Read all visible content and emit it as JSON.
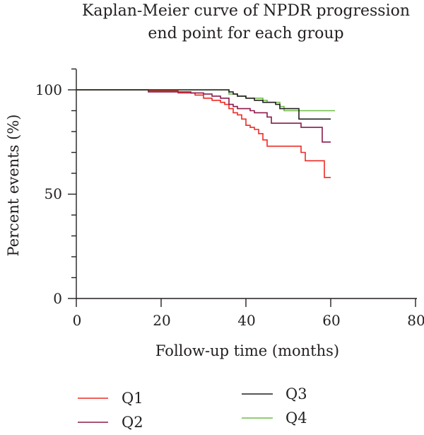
{
  "chart_data": {
    "type": "line",
    "title_line1": "Kaplan-Meier curve of NPDR progression",
    "title_line2": "end point for each group",
    "xlabel": "Follow-up time (months)",
    "ylabel": "Percent events (%)",
    "xlim": [
      0,
      80
    ],
    "ylim": [
      0,
      110
    ],
    "x_ticks": [
      "0",
      "20",
      "40",
      "60",
      "80"
    ],
    "y_ticks": [
      "0",
      "50",
      "100"
    ],
    "grid": false,
    "legend_position": "bottom",
    "series": [
      {
        "name": "Q1",
        "color": "#ee2a24",
        "points": [
          [
            0,
            100
          ],
          [
            17,
            99.5
          ],
          [
            24,
            98.5
          ],
          [
            28,
            97.5
          ],
          [
            30,
            96
          ],
          [
            32,
            95
          ],
          [
            34,
            94
          ],
          [
            35,
            93
          ],
          [
            36,
            91
          ],
          [
            37,
            89
          ],
          [
            38,
            88
          ],
          [
            39,
            86
          ],
          [
            40,
            83
          ],
          [
            41,
            82
          ],
          [
            42,
            81
          ],
          [
            43,
            79
          ],
          [
            44,
            76
          ],
          [
            45,
            73
          ],
          [
            52,
            73
          ],
          [
            53,
            70
          ],
          [
            54,
            66
          ],
          [
            58,
            66
          ],
          [
            58.5,
            58
          ],
          [
            60,
            58
          ]
        ]
      },
      {
        "name": "Q2",
        "color": "#8b1a4a",
        "points": [
          [
            0,
            100
          ],
          [
            17,
            99
          ],
          [
            27,
            98.5
          ],
          [
            30,
            98
          ],
          [
            32,
            97
          ],
          [
            34,
            96
          ],
          [
            36,
            93
          ],
          [
            37,
            92
          ],
          [
            38,
            91
          ],
          [
            40,
            91
          ],
          [
            41,
            90
          ],
          [
            42,
            89
          ],
          [
            44,
            89
          ],
          [
            45,
            87
          ],
          [
            46,
            84
          ],
          [
            52,
            84
          ],
          [
            53,
            82
          ],
          [
            57,
            82
          ],
          [
            58,
            75
          ],
          [
            60,
            75
          ]
        ]
      },
      {
        "name": "Q3",
        "color": "#231f20",
        "points": [
          [
            0,
            100
          ],
          [
            35,
            100
          ],
          [
            36,
            99
          ],
          [
            37,
            98
          ],
          [
            38,
            97
          ],
          [
            40,
            96
          ],
          [
            42,
            95
          ],
          [
            44,
            94
          ],
          [
            46,
            94
          ],
          [
            47,
            93
          ],
          [
            48,
            91
          ],
          [
            52,
            91
          ],
          [
            52.5,
            86
          ],
          [
            60,
            86
          ]
        ]
      },
      {
        "name": "Q4",
        "color": "#6cbd45",
        "points": [
          [
            0,
            100
          ],
          [
            34,
            100
          ],
          [
            36,
            98
          ],
          [
            38,
            97
          ],
          [
            40,
            96
          ],
          [
            42,
            96
          ],
          [
            44,
            95
          ],
          [
            45,
            94
          ],
          [
            47,
            94
          ],
          [
            48,
            92
          ],
          [
            49,
            90
          ],
          [
            54,
            90
          ],
          [
            61,
            90
          ]
        ]
      }
    ]
  }
}
